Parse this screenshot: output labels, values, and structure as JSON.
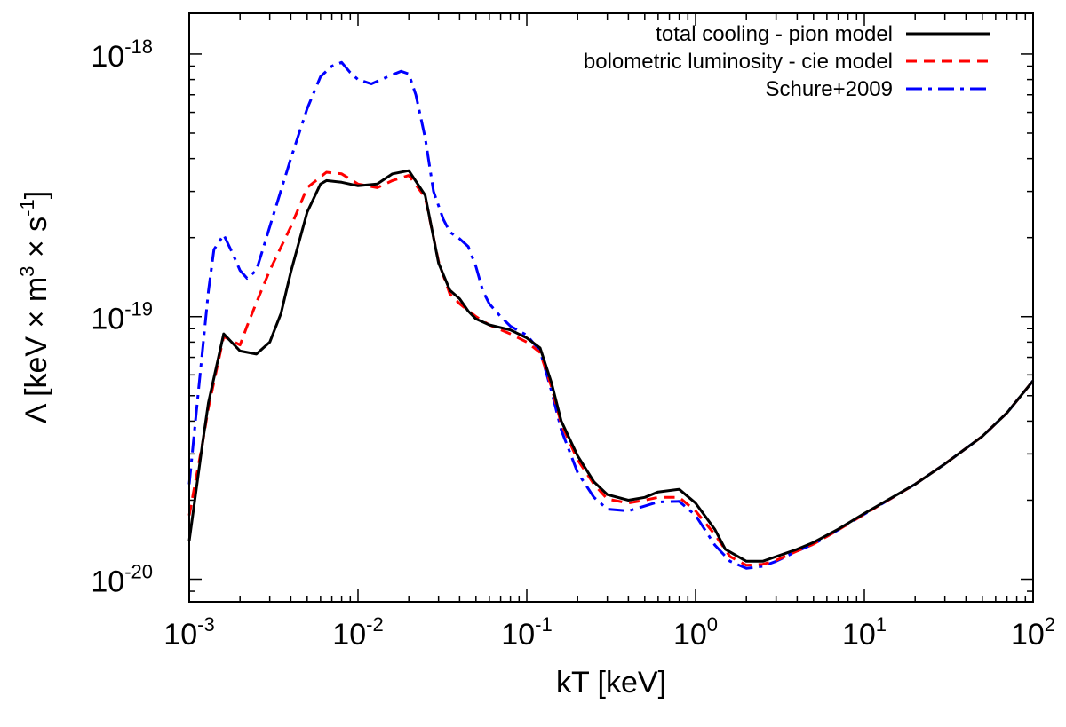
{
  "chart_data": {
    "type": "line",
    "xscale": "log",
    "yscale": "log",
    "xlabel": "kT [keV]",
    "ylabel": "Λ [keV × m³ × s⁻¹]",
    "ylabel_parts": {
      "prefix": "Λ [keV × m",
      "exp1": "3",
      "mid": " × s",
      "exp2": "-1",
      "suffix": "]"
    },
    "xlim": [
      0.001,
      100
    ],
    "ylim": [
      8.2e-21,
      1.43e-18
    ],
    "x_ticks": [
      {
        "value": 0.001,
        "base": "10",
        "exp": "-3"
      },
      {
        "value": 0.01,
        "base": "10",
        "exp": "-2"
      },
      {
        "value": 0.1,
        "base": "10",
        "exp": "-1"
      },
      {
        "value": 1,
        "base": "10",
        "exp": "0"
      },
      {
        "value": 10,
        "base": "10",
        "exp": "1"
      },
      {
        "value": 100,
        "base": "10",
        "exp": "2"
      }
    ],
    "y_ticks": [
      {
        "value": 1e-20,
        "base": "10",
        "exp": "-20"
      },
      {
        "value": 1e-19,
        "base": "10",
        "exp": "-19"
      },
      {
        "value": 1e-18,
        "base": "10",
        "exp": "-18"
      }
    ],
    "legend_position": "top-right",
    "series": [
      {
        "name": "total cooling - pion model",
        "color": "#000000",
        "style": "solid",
        "points": [
          [
            0.001,
            1.4e-20
          ],
          [
            0.0012,
            3.3e-20
          ],
          [
            0.0013,
            4.7e-20
          ],
          [
            0.0016,
            8.6e-20
          ],
          [
            0.002,
            7.4e-20
          ],
          [
            0.0025,
            7.2e-20
          ],
          [
            0.003,
            8e-20
          ],
          [
            0.0035,
            1.03e-19
          ],
          [
            0.004,
            1.48e-19
          ],
          [
            0.005,
            2.5e-19
          ],
          [
            0.006,
            3.2e-19
          ],
          [
            0.0065,
            3.3e-19
          ],
          [
            0.008,
            3.25e-19
          ],
          [
            0.01,
            3.15e-19
          ],
          [
            0.013,
            3.2e-19
          ],
          [
            0.016,
            3.5e-19
          ],
          [
            0.02,
            3.6e-19
          ],
          [
            0.025,
            2.9e-19
          ],
          [
            0.03,
            1.6e-19
          ],
          [
            0.035,
            1.26e-19
          ],
          [
            0.04,
            1.17e-19
          ],
          [
            0.045,
            1.05e-19
          ],
          [
            0.05,
            9.8e-20
          ],
          [
            0.06,
            9.3e-20
          ],
          [
            0.08,
            8.9e-20
          ],
          [
            0.1,
            8.3e-20
          ],
          [
            0.12,
            7.6e-20
          ],
          [
            0.14,
            5.6e-20
          ],
          [
            0.16,
            4e-20
          ],
          [
            0.2,
            2.95e-20
          ],
          [
            0.25,
            2.35e-20
          ],
          [
            0.3,
            2.1e-20
          ],
          [
            0.4,
            2e-20
          ],
          [
            0.5,
            2.05e-20
          ],
          [
            0.6,
            2.15e-20
          ],
          [
            0.8,
            2.2e-20
          ],
          [
            1.0,
            1.95e-20
          ],
          [
            1.3,
            1.55e-20
          ],
          [
            1.5,
            1.3e-20
          ],
          [
            2.0,
            1.17e-20
          ],
          [
            2.5,
            1.17e-20
          ],
          [
            3,
            1.22e-20
          ],
          [
            4,
            1.3e-20
          ],
          [
            5,
            1.38e-20
          ],
          [
            7,
            1.55e-20
          ],
          [
            10,
            1.78e-20
          ],
          [
            20,
            2.3e-20
          ],
          [
            30,
            2.75e-20
          ],
          [
            50,
            3.5e-20
          ],
          [
            70,
            4.3e-20
          ],
          [
            100,
            5.7e-20
          ]
        ]
      },
      {
        "name": "bolometric luminosity - cie model",
        "color": "#ff0000",
        "style": "dashed",
        "points": [
          [
            0.001,
            1.75e-20
          ],
          [
            0.0012,
            3.3e-20
          ],
          [
            0.0013,
            4.5e-20
          ],
          [
            0.0016,
            8.4e-20
          ],
          [
            0.002,
            7.8e-20
          ],
          [
            0.0022,
            9.2e-20
          ],
          [
            0.0025,
            1.13e-19
          ],
          [
            0.003,
            1.5e-19
          ],
          [
            0.004,
            2.2e-19
          ],
          [
            0.005,
            3.1e-19
          ],
          [
            0.0065,
            3.55e-19
          ],
          [
            0.008,
            3.5e-19
          ],
          [
            0.01,
            3.2e-19
          ],
          [
            0.013,
            3.1e-19
          ],
          [
            0.016,
            3.3e-19
          ],
          [
            0.02,
            3.45e-19
          ],
          [
            0.025,
            2.85e-19
          ],
          [
            0.03,
            1.62e-19
          ],
          [
            0.035,
            1.22e-19
          ],
          [
            0.04,
            1.12e-19
          ],
          [
            0.05,
            1e-19
          ],
          [
            0.06,
            9.3e-20
          ],
          [
            0.08,
            8.6e-20
          ],
          [
            0.1,
            8e-20
          ],
          [
            0.12,
            7.3e-20
          ],
          [
            0.14,
            5.4e-20
          ],
          [
            0.16,
            3.9e-20
          ],
          [
            0.2,
            2.85e-20
          ],
          [
            0.25,
            2.3e-20
          ],
          [
            0.3,
            2.02e-20
          ],
          [
            0.4,
            1.95e-20
          ],
          [
            0.5,
            2e-20
          ],
          [
            0.6,
            2.05e-20
          ],
          [
            0.8,
            2.05e-20
          ],
          [
            1.0,
            1.82e-20
          ],
          [
            1.3,
            1.48e-20
          ],
          [
            1.6,
            1.22e-20
          ],
          [
            2.0,
            1.13e-20
          ],
          [
            2.5,
            1.14e-20
          ],
          [
            3,
            1.18e-20
          ],
          [
            4,
            1.28e-20
          ],
          [
            5,
            1.36e-20
          ],
          [
            7,
            1.54e-20
          ],
          [
            10,
            1.77e-20
          ],
          [
            20,
            2.3e-20
          ],
          [
            30,
            2.75e-20
          ],
          [
            50,
            3.5e-20
          ],
          [
            70,
            4.3e-20
          ],
          [
            100,
            5.7e-20
          ]
        ]
      },
      {
        "name": "Schure+2009",
        "color": "#0000ff",
        "style": "dashdot",
        "points": [
          [
            0.001,
            2.3e-20
          ],
          [
            0.0011,
            4.3e-20
          ],
          [
            0.0013,
            1.25e-19
          ],
          [
            0.0014,
            1.8e-19
          ],
          [
            0.0016,
            2.05e-19
          ],
          [
            0.0018,
            1.75e-19
          ],
          [
            0.002,
            1.5e-19
          ],
          [
            0.0022,
            1.4e-19
          ],
          [
            0.0025,
            1.5e-19
          ],
          [
            0.003,
            2.2e-19
          ],
          [
            0.004,
            4e-19
          ],
          [
            0.005,
            6.2e-19
          ],
          [
            0.006,
            8.2e-19
          ],
          [
            0.007,
            9e-19
          ],
          [
            0.008,
            9.3e-19
          ],
          [
            0.009,
            8.5e-19
          ],
          [
            0.01,
            8e-19
          ],
          [
            0.012,
            7.7e-19
          ],
          [
            0.015,
            8.2e-19
          ],
          [
            0.018,
            8.6e-19
          ],
          [
            0.02,
            8.4e-19
          ],
          [
            0.022,
            7e-19
          ],
          [
            0.025,
            4.8e-19
          ],
          [
            0.028,
            3e-19
          ],
          [
            0.032,
            2.35e-19
          ],
          [
            0.035,
            2.1e-19
          ],
          [
            0.04,
            1.98e-19
          ],
          [
            0.045,
            1.85e-19
          ],
          [
            0.05,
            1.55e-19
          ],
          [
            0.055,
            1.25e-19
          ],
          [
            0.06,
            1.12e-19
          ],
          [
            0.07,
            1e-19
          ],
          [
            0.08,
            9.2e-20
          ],
          [
            0.1,
            8.5e-20
          ],
          [
            0.12,
            7.4e-20
          ],
          [
            0.14,
            5.2e-20
          ],
          [
            0.16,
            3.7e-20
          ],
          [
            0.2,
            2.55e-20
          ],
          [
            0.25,
            2.05e-20
          ],
          [
            0.3,
            1.85e-20
          ],
          [
            0.4,
            1.82e-20
          ],
          [
            0.5,
            1.9e-20
          ],
          [
            0.6,
            1.97e-20
          ],
          [
            0.8,
            1.98e-20
          ],
          [
            1.0,
            1.75e-20
          ],
          [
            1.3,
            1.35e-20
          ],
          [
            1.6,
            1.17e-20
          ],
          [
            2.0,
            1.1e-20
          ],
          [
            2.5,
            1.12e-20
          ],
          [
            3,
            1.17e-20
          ],
          [
            4,
            1.28e-20
          ],
          [
            5,
            1.36e-20
          ],
          [
            7,
            1.54e-20
          ],
          [
            10,
            1.77e-20
          ],
          [
            20,
            2.3e-20
          ],
          [
            30,
            2.75e-20
          ],
          [
            50,
            3.5e-20
          ],
          [
            70,
            4.3e-20
          ],
          [
            100,
            5.7e-20
          ]
        ]
      }
    ]
  }
}
